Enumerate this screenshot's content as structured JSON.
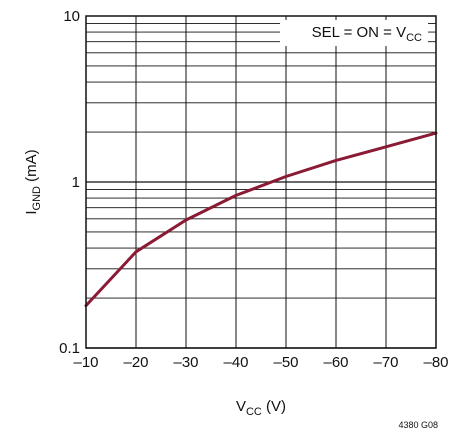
{
  "chart_data": {
    "type": "line",
    "title": "",
    "xlabel": {
      "main": "V",
      "sub": "CC",
      "suffix": " (V)"
    },
    "ylabel": {
      "main": "I",
      "sub": "GND",
      "suffix": " (mA)"
    },
    "xlim": [
      -10,
      -80
    ],
    "xticks": [
      -10,
      -20,
      -30,
      -40,
      -50,
      -60,
      -70,
      -80
    ],
    "xtick_labels": [
      "–10",
      "–20",
      "–30",
      "–40",
      "–50",
      "–60",
      "–70",
      "–80"
    ],
    "ylim": [
      0.1,
      10
    ],
    "yscale": "log",
    "ytick_labels": [
      {
        "value": 10,
        "text": "10"
      },
      {
        "value": 1,
        "text": "1"
      },
      {
        "value": 0.1,
        "text": "0.1"
      }
    ],
    "grid": true,
    "annotation": {
      "main": "SEL = ON = V",
      "sub": "CC"
    },
    "figure_id": "4380 G08",
    "line_color": "#8b1a35",
    "series": [
      {
        "x": [
          -10,
          -20,
          -30,
          -40,
          -50,
          -60,
          -70,
          -80
        ],
        "y": [
          0.18,
          0.38,
          0.59,
          0.83,
          1.08,
          1.35,
          1.63,
          1.97
        ]
      }
    ]
  }
}
